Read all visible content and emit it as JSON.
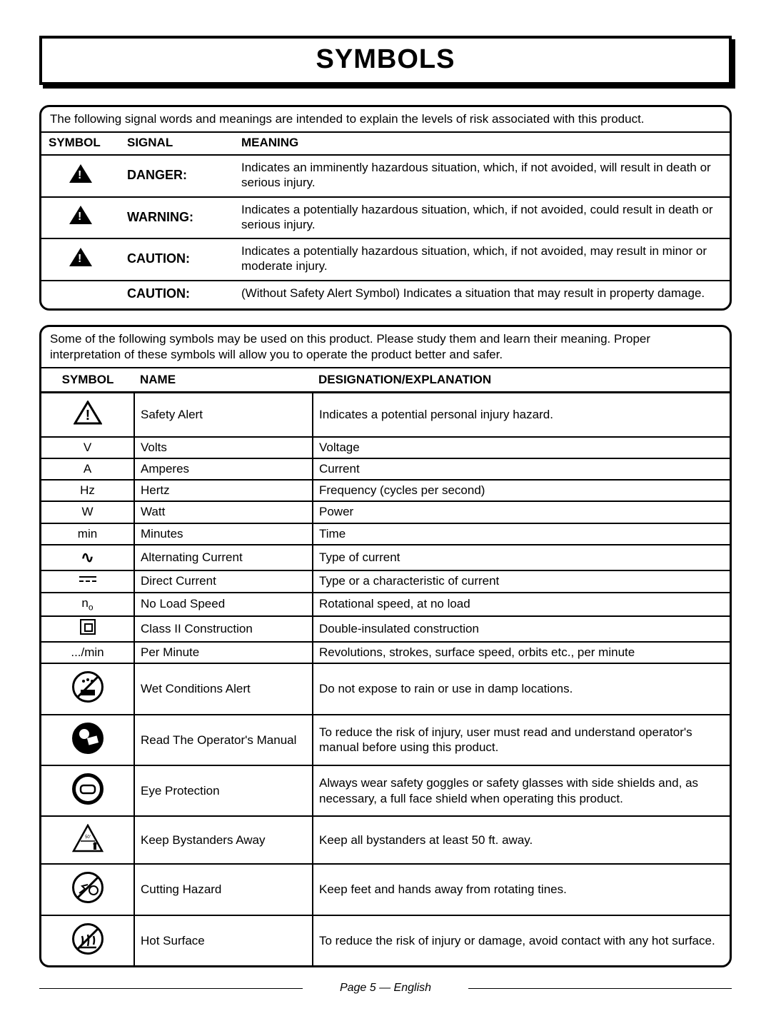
{
  "title": "SYMBOLS",
  "signal_panel": {
    "intro": "The following signal words and meanings are intended to explain the levels of risk associated with this product.",
    "head": {
      "c1": "SYMBOL",
      "c2": "SIGNAL",
      "c3": "MEANING"
    },
    "rows": [
      {
        "has_icon": true,
        "signal": "DANGER:",
        "meaning": "Indicates an imminently hazardous situation, which, if not avoided, will result in death or serious injury."
      },
      {
        "has_icon": true,
        "signal": "WARNING:",
        "meaning": "Indicates a potentially hazardous situation, which, if not avoided, could result in death or serious injury."
      },
      {
        "has_icon": true,
        "signal": "CAUTION:",
        "meaning": "Indicates a potentially hazardous situation, which, if not avoided, may result in minor or moderate injury."
      },
      {
        "has_icon": false,
        "signal": "CAUTION:",
        "meaning": "(Without Safety Alert Symbol) Indicates a situation that may result in property damage."
      }
    ]
  },
  "symbol_panel": {
    "intro": "Some of the following symbols may be used on this product. Please study them and learn their meaning. Proper interpretation of these symbols will allow you to operate the product better and safer.",
    "head": {
      "c1": "SYMBOL",
      "c2": "NAME",
      "c3": "DESIGNATION/EXPLANATION"
    },
    "rows": [
      {
        "icon": "alert-outline",
        "tall": true,
        "name": "Safety Alert",
        "desc": "Indicates a potential personal injury hazard."
      },
      {
        "icon": "V",
        "tall": false,
        "name": "Volts",
        "desc": "Voltage"
      },
      {
        "icon": "A",
        "tall": false,
        "name": "Amperes",
        "desc": "Current"
      },
      {
        "icon": "Hz",
        "tall": false,
        "name": "Hertz",
        "desc": "Frequency (cycles per second)"
      },
      {
        "icon": "W",
        "tall": false,
        "name": "Watt",
        "desc": "Power"
      },
      {
        "icon": "min",
        "tall": false,
        "name": "Minutes",
        "desc": "Time"
      },
      {
        "icon": "ac",
        "tall": false,
        "name": "Alternating Current",
        "desc": "Type of current"
      },
      {
        "icon": "dc",
        "tall": false,
        "name": "Direct Current",
        "desc": "Type or a characteristic of current"
      },
      {
        "icon": "no",
        "tall": false,
        "name": "No Load Speed",
        "desc": "Rotational speed, at no load"
      },
      {
        "icon": "class2",
        "tall": false,
        "name": "Class II Construction",
        "desc": "Double-insulated construction"
      },
      {
        "icon": ".../min",
        "tall": false,
        "name": "Per Minute",
        "desc": "Revolutions, strokes, surface speed, orbits etc., per minute"
      },
      {
        "icon": "wet",
        "tall": true,
        "name": "Wet Conditions Alert",
        "desc": "Do not expose to rain or use in damp locations."
      },
      {
        "icon": "manual",
        "tall": true,
        "name": "Read The Operator's Manual",
        "desc": "To reduce the risk of injury, user must read and understand operator's manual before using this product."
      },
      {
        "icon": "eye",
        "tall": true,
        "name": "Eye Protection",
        "desc": "Always wear safety goggles or safety glasses with side shields and, as necessary, a full face shield when operating this product."
      },
      {
        "icon": "bystander",
        "tall": true,
        "name": "Keep Bystanders Away",
        "desc": "Keep all bystanders at least 50 ft. away."
      },
      {
        "icon": "cutting",
        "tall": true,
        "name": "Cutting Hazard",
        "desc": "Keep feet and hands away from rotating tines."
      },
      {
        "icon": "hot",
        "tall": true,
        "name": "Hot Surface",
        "desc": "To reduce the risk of injury or damage, avoid contact with any hot surface."
      }
    ]
  },
  "footer": "Page 5  —  English"
}
